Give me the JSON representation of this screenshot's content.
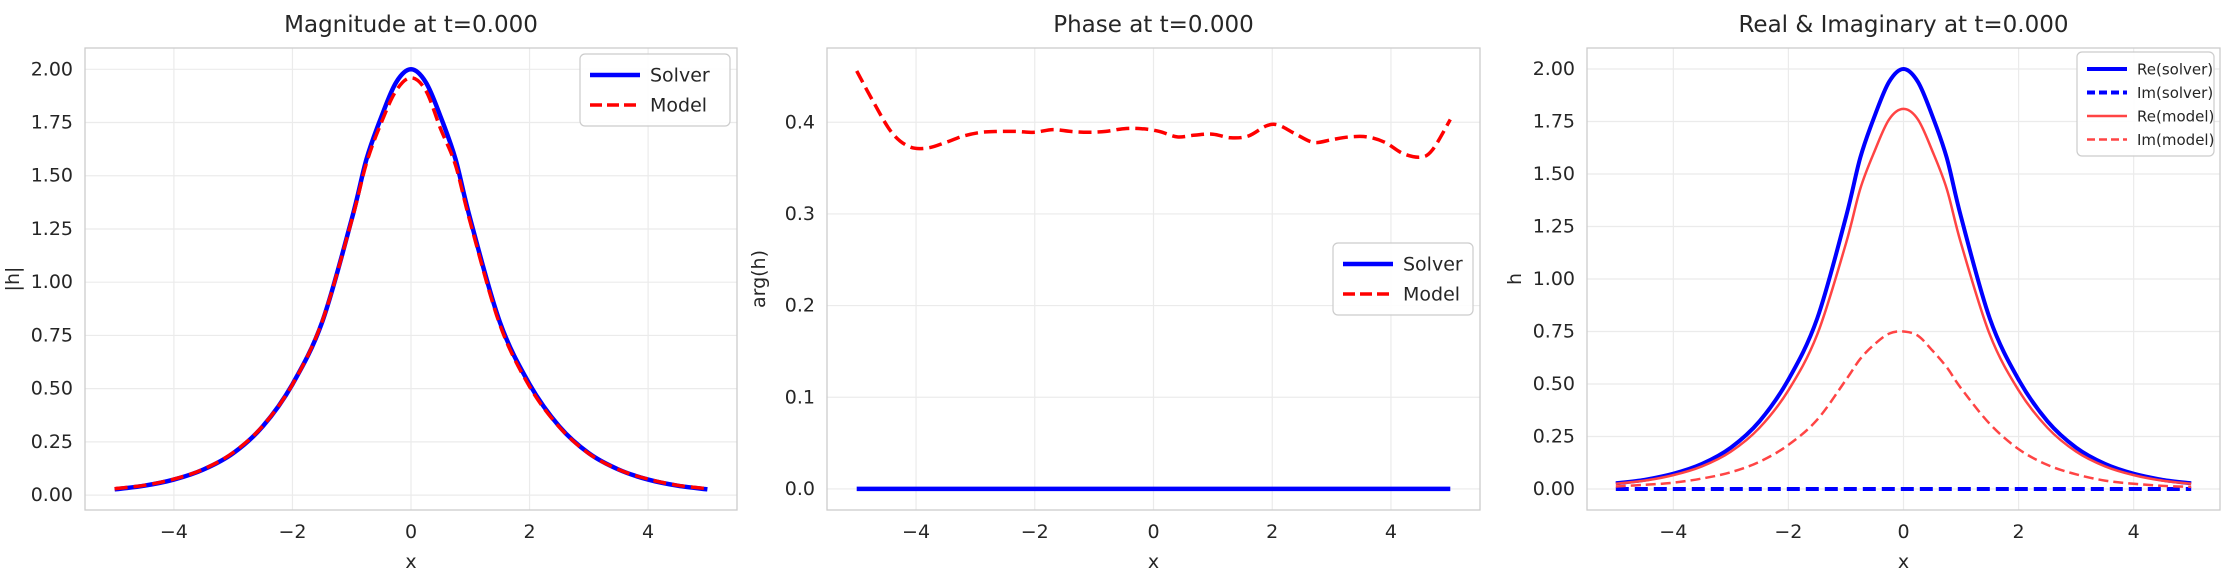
{
  "chart_data": [
    {
      "type": "line",
      "title": "Magnitude at t=0.000",
      "xlabel": "x",
      "ylabel": "|h|",
      "xlim": [
        -5.5,
        5.5
      ],
      "ylim": [
        -0.07,
        2.1
      ],
      "xticks": [
        -4,
        -2,
        0,
        2,
        4
      ],
      "xtick_labels": [
        "−4",
        "−2",
        "0",
        "2",
        "4"
      ],
      "yticks": [
        0,
        0.25,
        0.5,
        0.75,
        1.0,
        1.25,
        1.5,
        1.75,
        2.0
      ],
      "ytick_labels": [
        "0.00",
        "0.25",
        "0.50",
        "0.75",
        "1.00",
        "1.25",
        "1.50",
        "1.75",
        "2.00"
      ],
      "grid": true,
      "legend_position": "top-right",
      "series": [
        {
          "name": "Solver",
          "color": "#0000ff",
          "style": "solid",
          "width": 4.5,
          "x": [
            -5,
            -4.5,
            -4,
            -3.5,
            -3,
            -2.5,
            -2,
            -1.5,
            -1,
            -0.75,
            -0.5,
            -0.25,
            0,
            0.25,
            0.5,
            0.75,
            1,
            1.5,
            2,
            2.5,
            3,
            3.5,
            4,
            4.5,
            5
          ],
          "y": [
            0.027,
            0.044,
            0.073,
            0.12,
            0.197,
            0.323,
            0.521,
            0.812,
            1.296,
            1.578,
            1.777,
            1.939,
            2.0,
            1.939,
            1.777,
            1.578,
            1.296,
            0.812,
            0.521,
            0.323,
            0.197,
            0.12,
            0.073,
            0.044,
            0.027
          ]
        },
        {
          "name": "Model",
          "color": "#ff0000",
          "style": "dashed",
          "width": 3.5,
          "x": [
            -5,
            -4.5,
            -4,
            -3.5,
            -3,
            -2.5,
            -2,
            -1.5,
            -1,
            -0.75,
            -0.5,
            -0.25,
            0,
            0.25,
            0.5,
            0.75,
            1,
            1.5,
            2,
            2.5,
            3,
            3.5,
            4,
            4.5,
            5
          ],
          "y": [
            0.03,
            0.046,
            0.075,
            0.122,
            0.2,
            0.325,
            0.52,
            0.815,
            1.29,
            1.56,
            1.75,
            1.9,
            1.96,
            1.9,
            1.72,
            1.55,
            1.28,
            0.8,
            0.51,
            0.32,
            0.195,
            0.12,
            0.075,
            0.046,
            0.03
          ]
        }
      ]
    },
    {
      "type": "line",
      "title": "Phase at t=0.000",
      "xlabel": "x",
      "ylabel": "arg(h)",
      "xlim": [
        -5.5,
        5.5
      ],
      "ylim": [
        -0.023,
        0.481
      ],
      "xticks": [
        -4,
        -2,
        0,
        2,
        4
      ],
      "xtick_labels": [
        "−4",
        "−2",
        "0",
        "2",
        "4"
      ],
      "yticks": [
        0,
        0.1,
        0.2,
        0.3,
        0.4
      ],
      "ytick_labels": [
        "0.0",
        "0.1",
        "0.2",
        "0.3",
        "0.4"
      ],
      "grid": true,
      "legend_position": "center-right",
      "series": [
        {
          "name": "Solver",
          "color": "#0000ff",
          "style": "solid",
          "width": 4.5,
          "x": [
            -5,
            5
          ],
          "y": [
            0,
            0
          ]
        },
        {
          "name": "Model",
          "color": "#ff0000",
          "style": "dashed",
          "width": 3.5,
          "x": [
            -5,
            -4.7,
            -4.4,
            -4.1,
            -3.8,
            -3.5,
            -3.2,
            -2.9,
            -2.6,
            -2.3,
            -2.0,
            -1.7,
            -1.4,
            -1.1,
            -0.8,
            -0.5,
            -0.2,
            0.1,
            0.4,
            0.7,
            1.0,
            1.3,
            1.6,
            1.9,
            2.1,
            2.4,
            2.7,
            3.0,
            3.3,
            3.6,
            3.9,
            4.2,
            4.5,
            4.7,
            5.0
          ],
          "y": [
            0.456,
            0.42,
            0.388,
            0.373,
            0.372,
            0.378,
            0.385,
            0.389,
            0.39,
            0.39,
            0.389,
            0.392,
            0.39,
            0.389,
            0.39,
            0.393,
            0.393,
            0.39,
            0.384,
            0.386,
            0.387,
            0.383,
            0.385,
            0.396,
            0.397,
            0.387,
            0.378,
            0.381,
            0.384,
            0.384,
            0.378,
            0.366,
            0.362,
            0.37,
            0.403
          ]
        }
      ]
    },
    {
      "type": "line",
      "title": "Real & Imaginary at t=0.000",
      "xlabel": "x",
      "ylabel": "h",
      "xlim": [
        -5.5,
        5.5
      ],
      "ylim": [
        -0.1,
        2.1
      ],
      "xticks": [
        -4,
        -2,
        0,
        2,
        4
      ],
      "xtick_labels": [
        "−4",
        "−2",
        "0",
        "2",
        "4"
      ],
      "yticks": [
        0,
        0.25,
        0.5,
        0.75,
        1.0,
        1.25,
        1.5,
        1.75,
        2.0
      ],
      "ytick_labels": [
        "0.00",
        "0.25",
        "0.50",
        "0.75",
        "1.00",
        "1.25",
        "1.50",
        "1.75",
        "2.00"
      ],
      "grid": true,
      "legend_position": "top-right",
      "series": [
        {
          "name": "Re(solver)",
          "color": "#0000ff",
          "style": "solid",
          "width": 4,
          "x": [
            -5,
            -4.5,
            -4,
            -3.5,
            -3,
            -2.5,
            -2,
            -1.5,
            -1,
            -0.75,
            -0.5,
            -0.25,
            0,
            0.25,
            0.5,
            0.75,
            1,
            1.5,
            2,
            2.5,
            3,
            3.5,
            4,
            4.5,
            5
          ],
          "y": [
            0.027,
            0.044,
            0.073,
            0.12,
            0.197,
            0.323,
            0.521,
            0.812,
            1.296,
            1.578,
            1.777,
            1.939,
            2.0,
            1.939,
            1.777,
            1.578,
            1.296,
            0.812,
            0.521,
            0.323,
            0.197,
            0.12,
            0.073,
            0.044,
            0.027
          ]
        },
        {
          "name": "Im(solver)",
          "color": "#0000ff",
          "style": "dashed",
          "width": 4,
          "x": [
            -5,
            5
          ],
          "y": [
            0,
            0
          ]
        },
        {
          "name": "Re(model)",
          "color": "#ff4444",
          "style": "solid",
          "width": 2.5,
          "x": [
            -5,
            -4.5,
            -4,
            -3.5,
            -3,
            -2.5,
            -2,
            -1.5,
            -1,
            -0.75,
            -0.5,
            -0.25,
            0,
            0.25,
            0.5,
            0.75,
            1,
            1.5,
            2,
            2.5,
            3,
            3.5,
            4,
            4.5,
            5
          ],
          "y": [
            0.025,
            0.04,
            0.066,
            0.108,
            0.178,
            0.292,
            0.47,
            0.735,
            1.17,
            1.43,
            1.61,
            1.76,
            1.81,
            1.76,
            1.61,
            1.43,
            1.17,
            0.735,
            0.47,
            0.292,
            0.178,
            0.108,
            0.066,
            0.04,
            0.025
          ]
        },
        {
          "name": "Im(model)",
          "color": "#ff4444",
          "style": "dashed",
          "width": 2.5,
          "x": [
            -5,
            -4.5,
            -4,
            -3.5,
            -3,
            -2.5,
            -2,
            -1.5,
            -1,
            -0.75,
            -0.5,
            -0.25,
            0,
            0.25,
            0.5,
            0.75,
            1,
            1.5,
            2,
            2.5,
            3,
            3.5,
            4,
            4.5,
            5
          ],
          "y": [
            0.012,
            0.02,
            0.03,
            0.05,
            0.08,
            0.13,
            0.21,
            0.33,
            0.52,
            0.62,
            0.69,
            0.74,
            0.75,
            0.73,
            0.66,
            0.58,
            0.48,
            0.31,
            0.19,
            0.115,
            0.07,
            0.04,
            0.025,
            0.015,
            0.01
          ]
        }
      ]
    }
  ]
}
